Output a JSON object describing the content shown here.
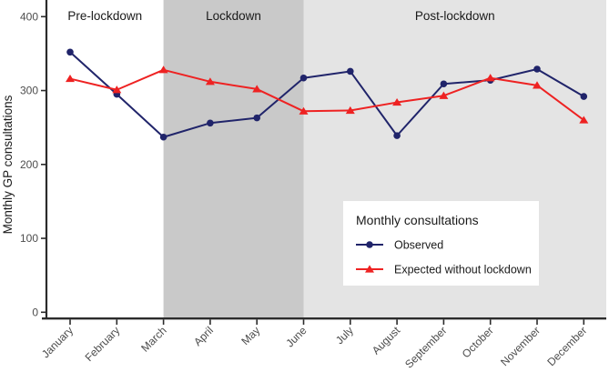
{
  "figure": {
    "kind": "statistical line chart (interrupted time series)"
  },
  "chart_data": {
    "type": "line",
    "title": "",
    "xlabel": "",
    "ylabel": "Monthly GP consultations",
    "x": [
      "January",
      "February",
      "March",
      "April",
      "May",
      "June",
      "July",
      "August",
      "September",
      "October",
      "November",
      "December"
    ],
    "y_ticks": [
      0,
      100,
      200,
      300,
      400
    ],
    "ylim": [
      0,
      400
    ],
    "grid": false,
    "series": [
      {
        "name": "Observed",
        "marker": "circle",
        "color": "#20246a",
        "values": [
          352,
          295,
          237,
          256,
          263,
          317,
          326,
          239,
          309,
          314,
          329,
          292
        ]
      },
      {
        "name": "Expected without lockdown",
        "marker": "triangle",
        "color": "#ee2222",
        "values": [
          316,
          301,
          328,
          312,
          302,
          272,
          273,
          284,
          293,
          317,
          307,
          260
        ]
      }
    ],
    "bands": [
      {
        "label": "Pre-lockdown",
        "from": null,
        "to": "March",
        "color": "#ffffff"
      },
      {
        "label": "Lockdown",
        "from": "March",
        "to": "June",
        "color": "#c9c9c9"
      },
      {
        "label": "Post-lockdown",
        "from": "June",
        "to": null,
        "color": "#e4e4e4"
      }
    ],
    "legend": {
      "title": "Monthly consultations",
      "position": "inside bottom-right",
      "entries": [
        "Observed",
        "Expected without lockdown"
      ]
    }
  },
  "style_colors": {
    "axis_line": "#2b2b2b",
    "tick_label": "#4d4d4d",
    "band_label": "#1a1a1a",
    "legend_text": "#1a1a1a",
    "legend_background": "#ffffff"
  }
}
